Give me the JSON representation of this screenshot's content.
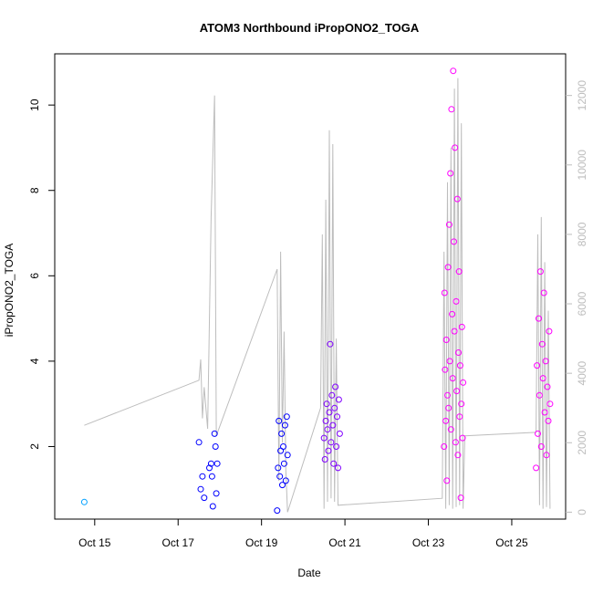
{
  "chart_data": {
    "type": "scatter",
    "title": "ATOM3 Northbound iPropONO2_TOGA",
    "xlabel": "Date",
    "ylabel": "iPropONO2_TOGA",
    "xlim": [
      "2016-10-14T01:00",
      "2016-10-26T07:00"
    ],
    "ylim": [
      0.3,
      11.2
    ],
    "y2lim": [
      -200,
      13200
    ],
    "x_ticks": [
      {
        "date": "2016-10-15",
        "label": "Oct 15"
      },
      {
        "date": "2016-10-17",
        "label": "Oct 17"
      },
      {
        "date": "2016-10-19",
        "label": "Oct 19"
      },
      {
        "date": "2016-10-21",
        "label": "Oct 21"
      },
      {
        "date": "2016-10-23",
        "label": "Oct 23"
      },
      {
        "date": "2016-10-25",
        "label": "Oct 25"
      }
    ],
    "y_ticks": [
      2,
      4,
      6,
      8,
      10
    ],
    "y2_ticks": [
      0,
      2000,
      4000,
      6000,
      8000,
      10000,
      12000
    ],
    "grid": false,
    "colors": {
      "points_early": "#00a0ff",
      "points_mid": "#0000ff",
      "points_late": "#ff00ff",
      "altitude_line": "#bdbdbd",
      "axis": "#000000",
      "right_axis": "#bdbdbd"
    },
    "altitude_series": [
      {
        "x": "2016-10-14T18:00",
        "y": 2500
      },
      {
        "x": "2016-10-17T12:00",
        "y": 3800
      },
      {
        "x": "2016-10-17T13:00",
        "y": 4400
      },
      {
        "x": "2016-10-17T14:00",
        "y": 2700
      },
      {
        "x": "2016-10-17T15:00",
        "y": 3600
      },
      {
        "x": "2016-10-17T17:00",
        "y": 2400
      },
      {
        "x": "2016-10-17T19:00",
        "y": 8500
      },
      {
        "x": "2016-10-17T21:00",
        "y": 12000
      },
      {
        "x": "2016-10-17T22:00",
        "y": 2200
      },
      {
        "x": "2016-10-19T09:00",
        "y": 7000
      },
      {
        "x": "2016-10-19T10:00",
        "y": 900
      },
      {
        "x": "2016-10-19T11:00",
        "y": 7500
      },
      {
        "x": "2016-10-19T12:00",
        "y": 2000
      },
      {
        "x": "2016-10-19T13:00",
        "y": 5200
      },
      {
        "x": "2016-10-19T14:00",
        "y": 1200
      },
      {
        "x": "2016-10-19T15:00",
        "y": 0
      },
      {
        "x": "2016-10-20T10:00",
        "y": 3000
      },
      {
        "x": "2016-10-20T11:00",
        "y": 8000
      },
      {
        "x": "2016-10-20T12:00",
        "y": 100
      },
      {
        "x": "2016-10-20T13:00",
        "y": 9000
      },
      {
        "x": "2016-10-20T14:00",
        "y": 300
      },
      {
        "x": "2016-10-20T15:00",
        "y": 11000
      },
      {
        "x": "2016-10-20T16:00",
        "y": 400
      },
      {
        "x": "2016-10-20T17:00",
        "y": 10600
      },
      {
        "x": "2016-10-20T18:00",
        "y": 300
      },
      {
        "x": "2016-10-20T19:00",
        "y": 5000
      },
      {
        "x": "2016-10-20T20:00",
        "y": 200
      },
      {
        "x": "2016-10-23T08:00",
        "y": 400
      },
      {
        "x": "2016-10-23T09:00",
        "y": 7500
      },
      {
        "x": "2016-10-23T10:00",
        "y": 100
      },
      {
        "x": "2016-10-23T11:00",
        "y": 9500
      },
      {
        "x": "2016-10-23T12:00",
        "y": 200
      },
      {
        "x": "2016-10-23T13:00",
        "y": 10500
      },
      {
        "x": "2016-10-23T14:00",
        "y": 100
      },
      {
        "x": "2016-10-23T15:00",
        "y": 12200
      },
      {
        "x": "2016-10-23T16:00",
        "y": 150
      },
      {
        "x": "2016-10-23T17:00",
        "y": 12500
      },
      {
        "x": "2016-10-23T18:00",
        "y": 200
      },
      {
        "x": "2016-10-23T19:00",
        "y": 11200
      },
      {
        "x": "2016-10-23T20:00",
        "y": 100
      },
      {
        "x": "2016-10-23T21:00",
        "y": 2200
      },
      {
        "x": "2016-10-25T14:00",
        "y": 2300
      },
      {
        "x": "2016-10-25T15:00",
        "y": 8000
      },
      {
        "x": "2016-10-25T16:00",
        "y": 200
      },
      {
        "x": "2016-10-25T17:00",
        "y": 8500
      },
      {
        "x": "2016-10-25T18:00",
        "y": 100
      },
      {
        "x": "2016-10-25T19:00",
        "y": 7200
      },
      {
        "x": "2016-10-25T20:00",
        "y": 150
      },
      {
        "x": "2016-10-25T21:00",
        "y": 5800
      },
      {
        "x": "2016-10-25T22:00",
        "y": 100
      }
    ],
    "points": [
      {
        "x": "2016-10-14T18:00",
        "y": 0.7
      },
      {
        "x": "2016-10-17T12:00",
        "y": 2.1
      },
      {
        "x": "2016-10-17T13:00",
        "y": 1.0
      },
      {
        "x": "2016-10-17T14:00",
        "y": 1.3
      },
      {
        "x": "2016-10-17T15:00",
        "y": 0.8
      },
      {
        "x": "2016-10-17T18:00",
        "y": 1.5
      },
      {
        "x": "2016-10-17T19:00",
        "y": 1.6
      },
      {
        "x": "2016-10-17T19:30",
        "y": 1.3
      },
      {
        "x": "2016-10-17T20:00",
        "y": 0.6
      },
      {
        "x": "2016-10-17T21:00",
        "y": 2.3
      },
      {
        "x": "2016-10-17T21:30",
        "y": 2.0
      },
      {
        "x": "2016-10-17T22:00",
        "y": 0.9
      },
      {
        "x": "2016-10-17T22:30",
        "y": 1.6
      },
      {
        "x": "2016-10-19T09:00",
        "y": 0.5
      },
      {
        "x": "2016-10-19T09:30",
        "y": 1.5
      },
      {
        "x": "2016-10-19T10:00",
        "y": 2.6
      },
      {
        "x": "2016-10-19T10:30",
        "y": 1.3
      },
      {
        "x": "2016-10-19T11:00",
        "y": 1.9
      },
      {
        "x": "2016-10-19T11:30",
        "y": 2.3
      },
      {
        "x": "2016-10-19T12:00",
        "y": 1.1
      },
      {
        "x": "2016-10-19T12:30",
        "y": 2.0
      },
      {
        "x": "2016-10-19T13:00",
        "y": 1.6
      },
      {
        "x": "2016-10-19T13:30",
        "y": 2.5
      },
      {
        "x": "2016-10-19T14:00",
        "y": 1.2
      },
      {
        "x": "2016-10-19T14:30",
        "y": 2.7
      },
      {
        "x": "2016-10-19T15:00",
        "y": 1.8
      },
      {
        "x": "2016-10-20T12:00",
        "y": 2.2
      },
      {
        "x": "2016-10-20T12:30",
        "y": 1.7
      },
      {
        "x": "2016-10-20T13:00",
        "y": 2.6
      },
      {
        "x": "2016-10-20T13:30",
        "y": 3.0
      },
      {
        "x": "2016-10-20T14:00",
        "y": 2.4
      },
      {
        "x": "2016-10-20T14:30",
        "y": 1.9
      },
      {
        "x": "2016-10-20T15:00",
        "y": 2.8
      },
      {
        "x": "2016-10-20T15:30",
        "y": 4.4
      },
      {
        "x": "2016-10-20T16:00",
        "y": 2.1
      },
      {
        "x": "2016-10-20T16:30",
        "y": 3.2
      },
      {
        "x": "2016-10-20T17:00",
        "y": 2.5
      },
      {
        "x": "2016-10-20T17:30",
        "y": 1.6
      },
      {
        "x": "2016-10-20T18:00",
        "y": 2.9
      },
      {
        "x": "2016-10-20T18:30",
        "y": 3.4
      },
      {
        "x": "2016-10-20T19:00",
        "y": 2.0
      },
      {
        "x": "2016-10-20T19:30",
        "y": 2.7
      },
      {
        "x": "2016-10-20T20:00",
        "y": 1.5
      },
      {
        "x": "2016-10-20T20:30",
        "y": 3.1
      },
      {
        "x": "2016-10-20T21:00",
        "y": 2.3
      },
      {
        "x": "2016-10-23T09:00",
        "y": 2.0
      },
      {
        "x": "2016-10-23T09:20",
        "y": 5.6
      },
      {
        "x": "2016-10-23T09:40",
        "y": 3.8
      },
      {
        "x": "2016-10-23T10:00",
        "y": 2.6
      },
      {
        "x": "2016-10-23T10:20",
        "y": 4.5
      },
      {
        "x": "2016-10-23T10:40",
        "y": 1.2
      },
      {
        "x": "2016-10-23T11:00",
        "y": 3.2
      },
      {
        "x": "2016-10-23T11:20",
        "y": 6.2
      },
      {
        "x": "2016-10-23T11:40",
        "y": 2.9
      },
      {
        "x": "2016-10-23T12:00",
        "y": 7.2
      },
      {
        "x": "2016-10-23T12:20",
        "y": 4.0
      },
      {
        "x": "2016-10-23T12:40",
        "y": 8.4
      },
      {
        "x": "2016-10-23T13:00",
        "y": 2.4
      },
      {
        "x": "2016-10-23T13:20",
        "y": 9.9
      },
      {
        "x": "2016-10-23T13:40",
        "y": 5.1
      },
      {
        "x": "2016-10-23T14:00",
        "y": 3.6
      },
      {
        "x": "2016-10-23T14:20",
        "y": 10.8
      },
      {
        "x": "2016-10-23T14:40",
        "y": 6.8
      },
      {
        "x": "2016-10-23T15:00",
        "y": 4.7
      },
      {
        "x": "2016-10-23T15:20",
        "y": 9.0
      },
      {
        "x": "2016-10-23T15:40",
        "y": 2.1
      },
      {
        "x": "2016-10-23T16:00",
        "y": 5.4
      },
      {
        "x": "2016-10-23T16:20",
        "y": 3.3
      },
      {
        "x": "2016-10-23T16:40",
        "y": 7.8
      },
      {
        "x": "2016-10-23T17:00",
        "y": 1.8
      },
      {
        "x": "2016-10-23T17:20",
        "y": 4.2
      },
      {
        "x": "2016-10-23T17:40",
        "y": 6.1
      },
      {
        "x": "2016-10-23T18:00",
        "y": 2.7
      },
      {
        "x": "2016-10-23T18:20",
        "y": 3.9
      },
      {
        "x": "2016-10-23T18:40",
        "y": 0.8
      },
      {
        "x": "2016-10-23T19:00",
        "y": 3.0
      },
      {
        "x": "2016-10-23T19:20",
        "y": 4.8
      },
      {
        "x": "2016-10-23T19:40",
        "y": 2.2
      },
      {
        "x": "2016-10-23T20:00",
        "y": 3.5
      },
      {
        "x": "2016-10-25T14:00",
        "y": 1.5
      },
      {
        "x": "2016-10-25T14:30",
        "y": 3.9
      },
      {
        "x": "2016-10-25T15:00",
        "y": 2.3
      },
      {
        "x": "2016-10-25T15:30",
        "y": 5.0
      },
      {
        "x": "2016-10-25T16:00",
        "y": 3.2
      },
      {
        "x": "2016-10-25T16:30",
        "y": 6.1
      },
      {
        "x": "2016-10-25T17:00",
        "y": 2.0
      },
      {
        "x": "2016-10-25T17:30",
        "y": 4.4
      },
      {
        "x": "2016-10-25T18:00",
        "y": 3.6
      },
      {
        "x": "2016-10-25T18:30",
        "y": 5.6
      },
      {
        "x": "2016-10-25T19:00",
        "y": 2.8
      },
      {
        "x": "2016-10-25T19:30",
        "y": 4.0
      },
      {
        "x": "2016-10-25T20:00",
        "y": 1.8
      },
      {
        "x": "2016-10-25T20:30",
        "y": 3.4
      },
      {
        "x": "2016-10-25T21:00",
        "y": 2.6
      },
      {
        "x": "2016-10-25T21:30",
        "y": 4.7
      },
      {
        "x": "2016-10-25T22:00",
        "y": 3.0
      }
    ]
  }
}
